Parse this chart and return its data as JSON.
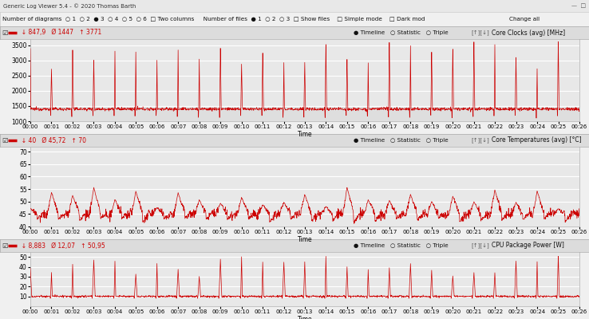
{
  "title_bar": "Generic Log Viewer 5.4 - © 2020 Thomas Barth",
  "chart1": {
    "title": "Core Clocks (avg) [MHz]",
    "stats_min": "↓ 847,9",
    "stats_avg": "Ø 1447",
    "stats_max": "↑ 3771",
    "ylabel_values": [
      1000,
      1500,
      2000,
      2500,
      3000,
      3500
    ],
    "ylim": [
      1000,
      3700
    ],
    "color": "#cc0000"
  },
  "chart2": {
    "title": "Core Temperatures (avg) [°C]",
    "stats_min": "↓ 40",
    "stats_avg": "Ø 45,72",
    "stats_max": "↑ 70",
    "ylabel_values": [
      40,
      45,
      50,
      55,
      60,
      65,
      70
    ],
    "ylim": [
      40,
      72
    ],
    "color": "#cc0000"
  },
  "chart3": {
    "title": "CPU Package Power [W]",
    "stats_min": "↓ 8,883",
    "stats_avg": "Ø 12,07",
    "stats_max": "↑ 50,95",
    "ylabel_values": [
      10,
      20,
      30,
      40,
      50
    ],
    "ylim": [
      0,
      55
    ],
    "color": "#cc0000"
  },
  "time_labels": [
    "00:00",
    "00:01",
    "00:02",
    "00:03",
    "00:04",
    "00:05",
    "00:06",
    "00:07",
    "00:08",
    "00:09",
    "00:10",
    "00:11",
    "00:12",
    "00:13",
    "00:14",
    "00:15",
    "00:16",
    "00:17",
    "00:18",
    "00:19",
    "00:20",
    "00:21",
    "00:22",
    "00:23",
    "00:24",
    "00:25",
    "00:26"
  ],
  "bg_color": "#f0f0f0",
  "plot_bg": "#e8e8e8",
  "grid_color": "#ffffff",
  "win_bg": "#f0f0f0",
  "titlebar_bg": "#e0e0e0",
  "header_bg": "#e8e8e8",
  "border_color": "#a0a0a0"
}
